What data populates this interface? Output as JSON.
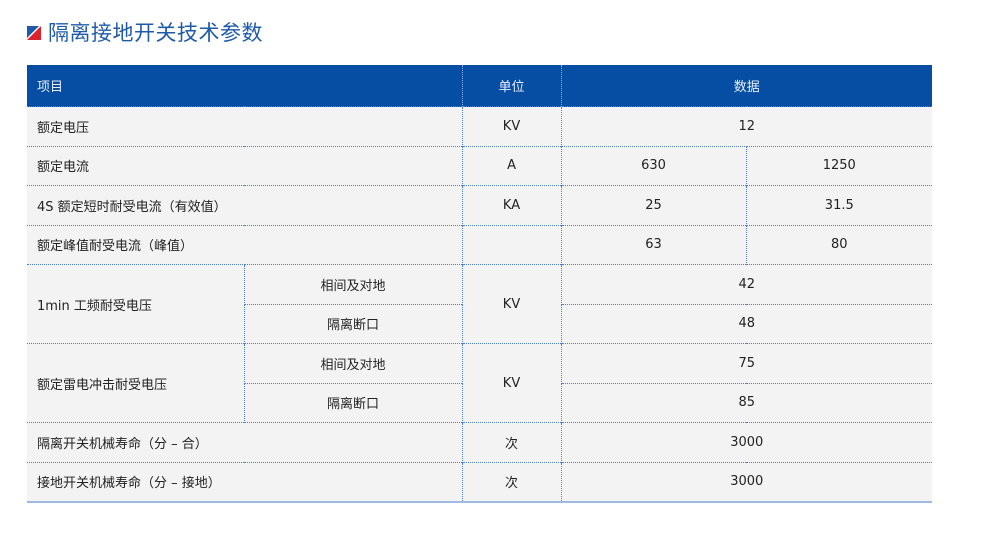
{
  "title": "隔离接地开关技术参数",
  "colors": {
    "header_bg": "#064ea3",
    "title": "#1f5aa8",
    "row_bg": "#f3f3f3",
    "logo_red": "#d9232e",
    "logo_blue": "#1f5aa8"
  },
  "headers": [
    "项目",
    "单位",
    "数据"
  ],
  "rows": {
    "r1": {
      "item": "额定电压",
      "unit": "KV",
      "value": "12"
    },
    "r2": {
      "item": "额定电流",
      "unit": "A",
      "v1": "630",
      "v2": "1250"
    },
    "r3": {
      "item": "4S 额定短时耐受电流（有效值）",
      "unit": "KA",
      "v1": "25",
      "v2": "31.5"
    },
    "r4": {
      "item": "额定峰值耐受电流（峰值）",
      "unit": "",
      "v1": "63",
      "v2": "80"
    },
    "r5": {
      "item": "1min 工频耐受电压",
      "sub1": "相间及对地",
      "sub2": "隔离断口",
      "unit": "KV",
      "v1": "42",
      "v2": "48"
    },
    "r6": {
      "item": "额定雷电冲击耐受电压",
      "sub1": "相间及对地",
      "sub2": "隔离断口",
      "unit": "KV",
      "v1": "75",
      "v2": "85"
    },
    "r7": {
      "item": "隔离开关机械寿命（分 – 合）",
      "unit": "次",
      "value": "3000"
    },
    "r8": {
      "item": "接地开关机械寿命（分 – 接地）",
      "unit": "次",
      "value": "3000"
    }
  }
}
